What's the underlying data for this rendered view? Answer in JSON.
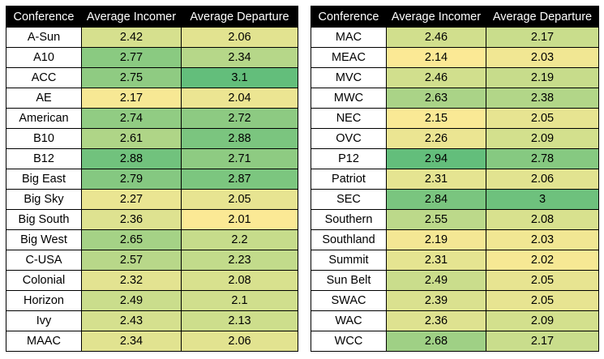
{
  "columns": [
    "Conference",
    "Average Incomer",
    "Average Departure"
  ],
  "chart_data": {
    "type": "table",
    "columns": [
      "Conference",
      "Average Incomer",
      "Average Departure"
    ],
    "color_scale": {
      "low": "#fbe995",
      "mid": "#d1df8d",
      "high": "#63be7b"
    },
    "tables": [
      {
        "rows": [
          {
            "conference": "A-Sun",
            "incomer": 2.42,
            "departure": 2.06
          },
          {
            "conference": "A10",
            "incomer": 2.77,
            "departure": 2.34
          },
          {
            "conference": "ACC",
            "incomer": 2.75,
            "departure": 3.1
          },
          {
            "conference": "AE",
            "incomer": 2.17,
            "departure": 2.04
          },
          {
            "conference": "American",
            "incomer": 2.74,
            "departure": 2.72
          },
          {
            "conference": "B10",
            "incomer": 2.61,
            "departure": 2.88
          },
          {
            "conference": "B12",
            "incomer": 2.88,
            "departure": 2.71
          },
          {
            "conference": "Big East",
            "incomer": 2.79,
            "departure": 2.87
          },
          {
            "conference": "Big Sky",
            "incomer": 2.27,
            "departure": 2.05
          },
          {
            "conference": "Big South",
            "incomer": 2.36,
            "departure": 2.01
          },
          {
            "conference": "Big West",
            "incomer": 2.65,
            "departure": 2.2
          },
          {
            "conference": "C-USA",
            "incomer": 2.57,
            "departure": 2.23
          },
          {
            "conference": "Colonial",
            "incomer": 2.32,
            "departure": 2.08
          },
          {
            "conference": "Horizon",
            "incomer": 2.49,
            "departure": 2.1
          },
          {
            "conference": "Ivy",
            "incomer": 2.43,
            "departure": 2.13
          },
          {
            "conference": "MAAC",
            "incomer": 2.34,
            "departure": 2.06
          }
        ]
      },
      {
        "rows": [
          {
            "conference": "MAC",
            "incomer": 2.46,
            "departure": 2.17
          },
          {
            "conference": "MEAC",
            "incomer": 2.14,
            "departure": 2.03
          },
          {
            "conference": "MVC",
            "incomer": 2.46,
            "departure": 2.19
          },
          {
            "conference": "MWC",
            "incomer": 2.63,
            "departure": 2.38
          },
          {
            "conference": "NEC",
            "incomer": 2.15,
            "departure": 2.05
          },
          {
            "conference": "OVC",
            "incomer": 2.26,
            "departure": 2.09
          },
          {
            "conference": "P12",
            "incomer": 2.94,
            "departure": 2.78
          },
          {
            "conference": "Patriot",
            "incomer": 2.31,
            "departure": 2.06
          },
          {
            "conference": "SEC",
            "incomer": 2.84,
            "departure": 3
          },
          {
            "conference": "Southern",
            "incomer": 2.55,
            "departure": 2.08
          },
          {
            "conference": "Southland",
            "incomer": 2.19,
            "departure": 2.03
          },
          {
            "conference": "Summit",
            "incomer": 2.31,
            "departure": 2.02
          },
          {
            "conference": "Sun Belt",
            "incomer": 2.49,
            "departure": 2.05
          },
          {
            "conference": "SWAC",
            "incomer": 2.39,
            "departure": 2.05
          },
          {
            "conference": "WAC",
            "incomer": 2.36,
            "departure": 2.09
          },
          {
            "conference": "WCC",
            "incomer": 2.68,
            "departure": 2.17
          }
        ]
      }
    ]
  }
}
